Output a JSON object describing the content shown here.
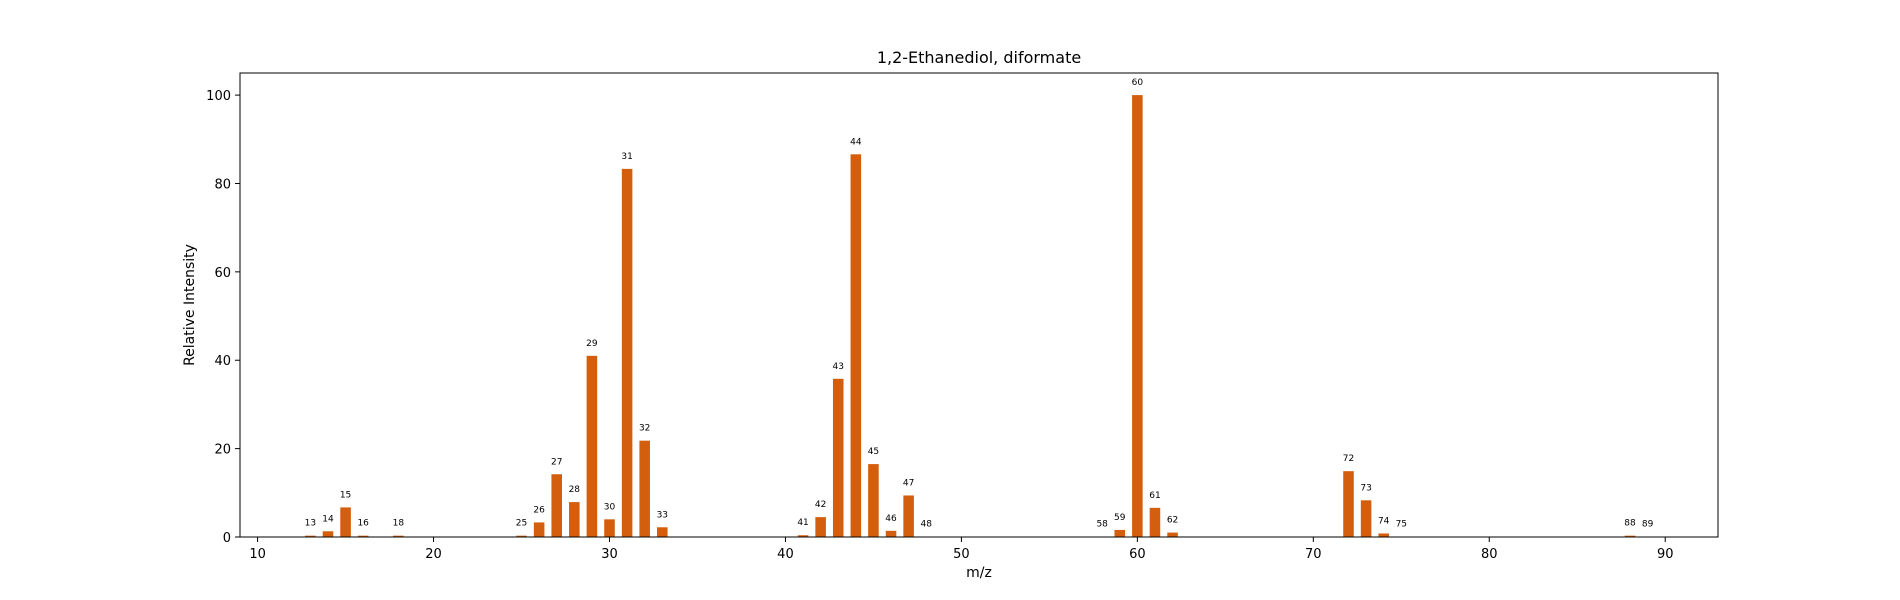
{
  "chart_data": {
    "type": "bar",
    "title": "1,2-Ethanediol, diformate",
    "xlabel": "m/z",
    "ylabel": "Relative Intensity",
    "xlim": [
      9,
      93
    ],
    "ylim": [
      0,
      105
    ],
    "xticks": [
      10,
      20,
      30,
      40,
      50,
      60,
      70,
      80,
      90
    ],
    "yticks": [
      0,
      20,
      40,
      60,
      80,
      100
    ],
    "bar_color": "#d35f0e",
    "grid": false,
    "x": [
      13,
      14,
      15,
      16,
      18,
      25,
      26,
      27,
      28,
      29,
      30,
      31,
      32,
      33,
      41,
      42,
      43,
      44,
      45,
      46,
      47,
      48,
      58,
      59,
      60,
      61,
      62,
      72,
      73,
      74,
      75,
      88,
      89
    ],
    "values": [
      0.3,
      1.3,
      6.7,
      0.3,
      0.3,
      0.3,
      3.3,
      14.2,
      7.9,
      41.0,
      4.0,
      83.3,
      21.8,
      2.2,
      0.4,
      4.5,
      35.8,
      86.6,
      16.5,
      1.4,
      9.4,
      0.1,
      0.1,
      1.6,
      100.0,
      6.6,
      1.0,
      14.9,
      8.3,
      0.8,
      0.1,
      0.3,
      0.1
    ],
    "labels": [
      "13",
      "14",
      "15",
      "16",
      "18",
      "25",
      "26",
      "27",
      "28",
      "29",
      "30",
      "31",
      "32",
      "33",
      "41",
      "42",
      "43",
      "44",
      "45",
      "46",
      "47",
      "48",
      "58",
      "59",
      "60",
      "61",
      "62",
      "72",
      "73",
      "74",
      "75",
      "88",
      "89"
    ]
  }
}
